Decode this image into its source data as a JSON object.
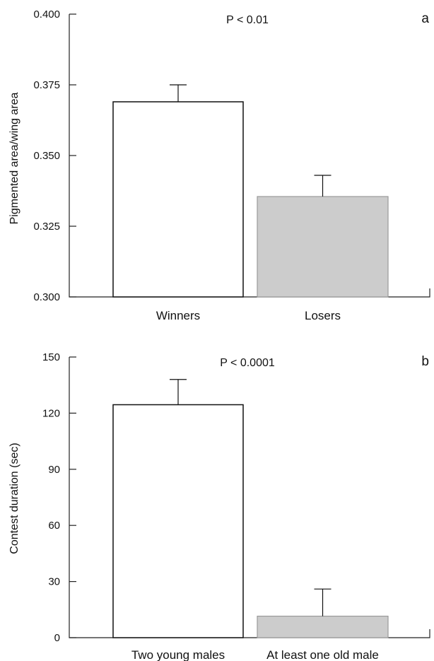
{
  "chart_data": [
    {
      "type": "bar",
      "panel_label": "a",
      "annotation": "P < 0.01",
      "ylabel": "Pigmented area/wing area",
      "xlabel": "",
      "ylim": [
        0.3,
        0.4
      ],
      "y_ticks": [
        0.3,
        0.325,
        0.35,
        0.375,
        0.4
      ],
      "y_tick_labels": [
        "0.300",
        "0.325",
        "0.350",
        "0.375",
        "0.400"
      ],
      "categories": [
        "Winners",
        "Losers"
      ],
      "values": [
        0.369,
        0.3355
      ],
      "errors": [
        0.006,
        0.0075
      ],
      "colors": [
        "#ffffff",
        "#cccccc"
      ]
    },
    {
      "type": "bar",
      "panel_label": "b",
      "annotation": "P < 0.0001",
      "ylabel": "Contest duration (sec)",
      "xlabel": "",
      "ylim": [
        0,
        150
      ],
      "y_ticks": [
        0,
        30,
        60,
        90,
        120,
        150
      ],
      "y_tick_labels": [
        "0",
        "30",
        "60",
        "90",
        "120",
        "150"
      ],
      "categories": [
        "Two young males",
        "At least one old male"
      ],
      "values": [
        124.5,
        11.5
      ],
      "errors": [
        13.5,
        14.5
      ],
      "colors": [
        "#ffffff",
        "#cccccc"
      ]
    }
  ]
}
